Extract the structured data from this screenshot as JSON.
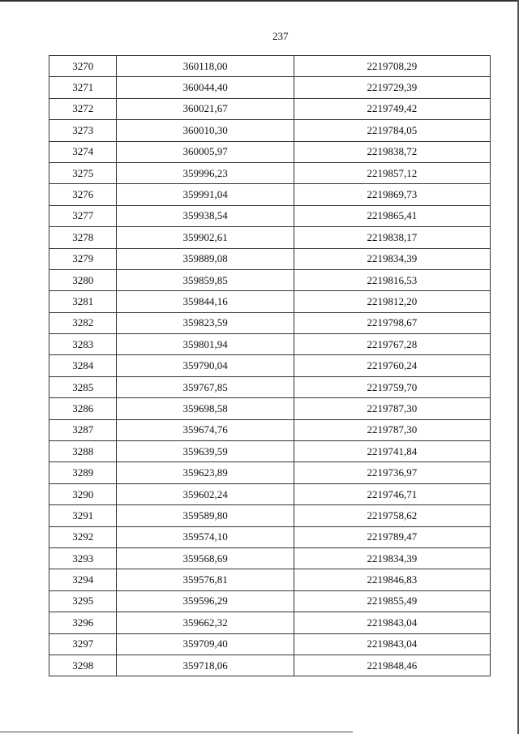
{
  "page_number": "237",
  "table": {
    "rows": [
      [
        "3270",
        "360118,00",
        "2219708,29"
      ],
      [
        "3271",
        "360044,40",
        "2219729,39"
      ],
      [
        "3272",
        "360021,67",
        "2219749,42"
      ],
      [
        "3273",
        "360010,30",
        "2219784,05"
      ],
      [
        "3274",
        "360005,97",
        "2219838,72"
      ],
      [
        "3275",
        "359996,23",
        "2219857,12"
      ],
      [
        "3276",
        "359991,04",
        "2219869,73"
      ],
      [
        "3277",
        "359938,54",
        "2219865,41"
      ],
      [
        "3278",
        "359902,61",
        "2219838,17"
      ],
      [
        "3279",
        "359889,08",
        "2219834,39"
      ],
      [
        "3280",
        "359859,85",
        "2219816,53"
      ],
      [
        "3281",
        "359844,16",
        "2219812,20"
      ],
      [
        "3282",
        "359823,59",
        "2219798,67"
      ],
      [
        "3283",
        "359801,94",
        "2219767,28"
      ],
      [
        "3284",
        "359790,04",
        "2219760,24"
      ],
      [
        "3285",
        "359767,85",
        "2219759,70"
      ],
      [
        "3286",
        "359698,58",
        "2219787,30"
      ],
      [
        "3287",
        "359674,76",
        "2219787,30"
      ],
      [
        "3288",
        "359639,59",
        "2219741,84"
      ],
      [
        "3289",
        "359623,89",
        "2219736,97"
      ],
      [
        "3290",
        "359602,24",
        "2219746,71"
      ],
      [
        "3291",
        "359589,80",
        "2219758,62"
      ],
      [
        "3292",
        "359574,10",
        "2219789,47"
      ],
      [
        "3293",
        "359568,69",
        "2219834,39"
      ],
      [
        "3294",
        "359576,81",
        "2219846,83"
      ],
      [
        "3295",
        "359596,29",
        "2219855,49"
      ],
      [
        "3296",
        "359662,32",
        "2219843,04"
      ],
      [
        "3297",
        "359709,40",
        "2219843,04"
      ],
      [
        "3298",
        "359718,06",
        "2219848,46"
      ]
    ]
  }
}
